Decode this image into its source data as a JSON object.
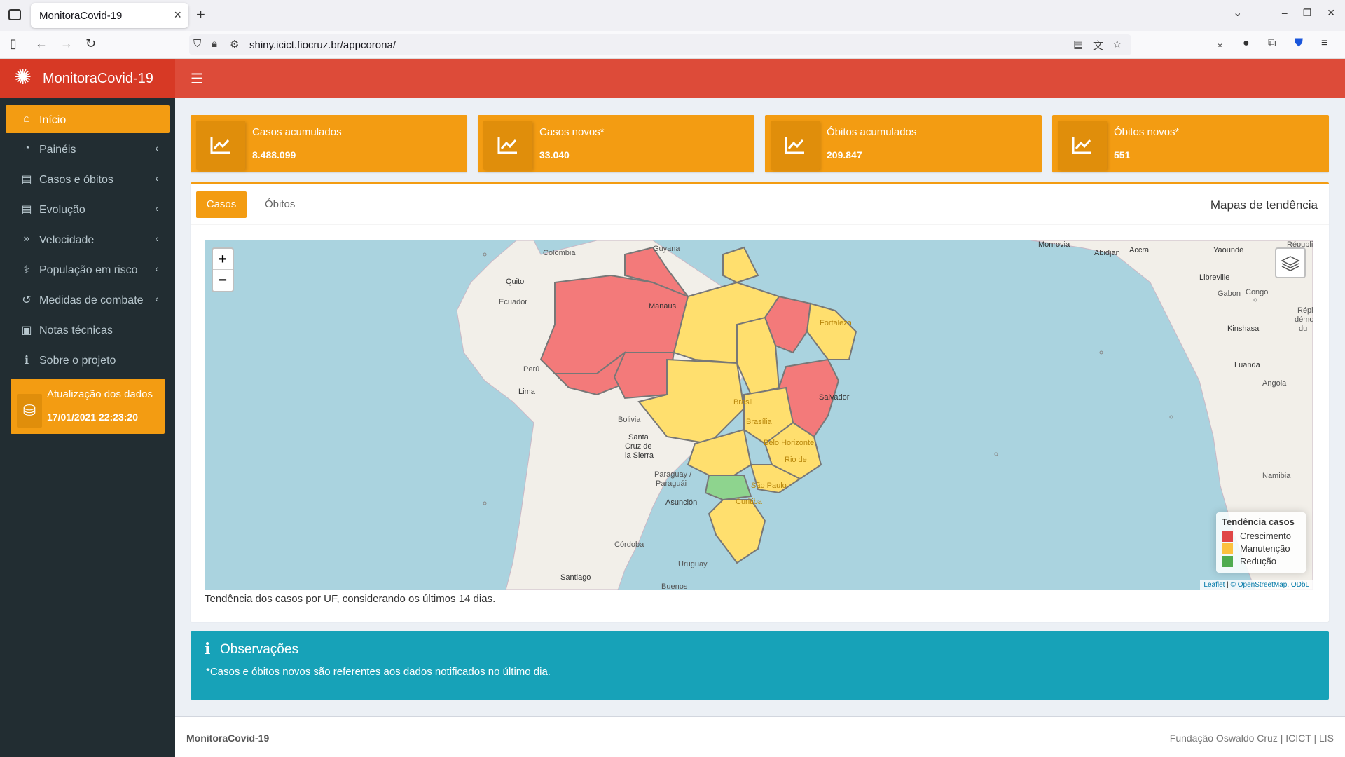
{
  "browser": {
    "tab_title": "MonitoraCovid-19",
    "url": "shiny.icict.fiocruz.br/appcorona/"
  },
  "header": {
    "brand": "MonitoraCovid-19"
  },
  "sidebar": {
    "items": [
      {
        "label": "Início",
        "icon": "home-icon",
        "active": true
      },
      {
        "label": "Painéis",
        "icon": "pie-chart-icon",
        "has_caret": true
      },
      {
        "label": "Casos e óbitos",
        "icon": "file-icon",
        "has_caret": true
      },
      {
        "label": "Evolução",
        "icon": "file-icon",
        "has_caret": true
      },
      {
        "label": "Velocidade",
        "icon": "double-chevron-icon",
        "has_caret": true
      },
      {
        "label": "População em risco",
        "icon": "stethoscope-icon",
        "has_caret": true
      },
      {
        "label": "Medidas de combate",
        "icon": "undo-icon",
        "has_caret": true
      },
      {
        "label": "Notas técnicas",
        "icon": "book-icon"
      },
      {
        "label": "Sobre o projeto",
        "icon": "info-icon"
      }
    ],
    "update": {
      "label": "Atualização dos dados",
      "value": "17/01/2021 22:23:20"
    }
  },
  "info_boxes": [
    {
      "label": "Casos acumulados",
      "value": "8.488.099"
    },
    {
      "label": "Casos novos*",
      "value": "33.040"
    },
    {
      "label": "Óbitos acumulados",
      "value": "209.847"
    },
    {
      "label": "Óbitos novos*",
      "value": "551"
    }
  ],
  "panel": {
    "tabs": [
      "Casos",
      "Óbitos"
    ],
    "title": "Mapas de tendência",
    "caption": "Tendência dos casos por UF, considerando os últimos 14 dias."
  },
  "map": {
    "zoom_in": "+",
    "zoom_out": "−",
    "legend": {
      "title": "Tendência casos",
      "items": [
        {
          "label": "Crescimento",
          "color": "#f03b3b"
        },
        {
          "label": "Manutenção",
          "color": "#ffd23f"
        },
        {
          "label": "Redução",
          "color": "#4caf50"
        }
      ]
    },
    "attribution_leaflet": "Leaflet",
    "attribution_osm": "© OpenStreetMap, ODbL",
    "labels": {
      "colombia": "Colombia",
      "guyana": "Guyana",
      "quito": "Quito",
      "ecuador": "Ecuador",
      "manaus": "Manaus",
      "fortaleza": "Fortaleza",
      "peru": "Perú",
      "lima": "Lima",
      "brasil": "Brasil",
      "brasilia": "Brasília",
      "salvador": "Salvador",
      "bolivia": "Bolivia",
      "santacruz1": "Santa",
      "santacruz2": "Cruz de",
      "santacruz3": "la Sierra",
      "belohorizonte": "Belo Horizonte",
      "rio": "Rio de",
      "paraguay1": "Paraguay /",
      "paraguay2": "Paraguái",
      "saopaulo": "São Paulo",
      "asuncion": "Asunción",
      "curitiba": "Curitiba",
      "cordoba": "Córdoba",
      "uruguay": "Uruguay",
      "santiago": "Santiago",
      "buenos": "Buenos",
      "monrovia": "Monrovia",
      "abidjan": "Abidjan",
      "accra": "Accra",
      "yaounde": "Yaoundé",
      "libreville": "Libreville",
      "gabon": "Gabon",
      "congo": "Congo",
      "kinshasa": "Kinshasa",
      "luanda": "Luanda",
      "angola": "Angola",
      "namibia": "Namibia",
      "republi": "Républi",
      "repdemo1": "Répi",
      "repdemo2": "démo",
      "repdemo3": "du"
    }
  },
  "observacoes": {
    "title": "Observações",
    "text": "*Casos e óbitos novos são referentes aos dados notificados no último dia."
  },
  "footer": {
    "left": "MonitoraCovid-19",
    "right": "Fundação Oswaldo Cruz | ICICT | LIS"
  }
}
